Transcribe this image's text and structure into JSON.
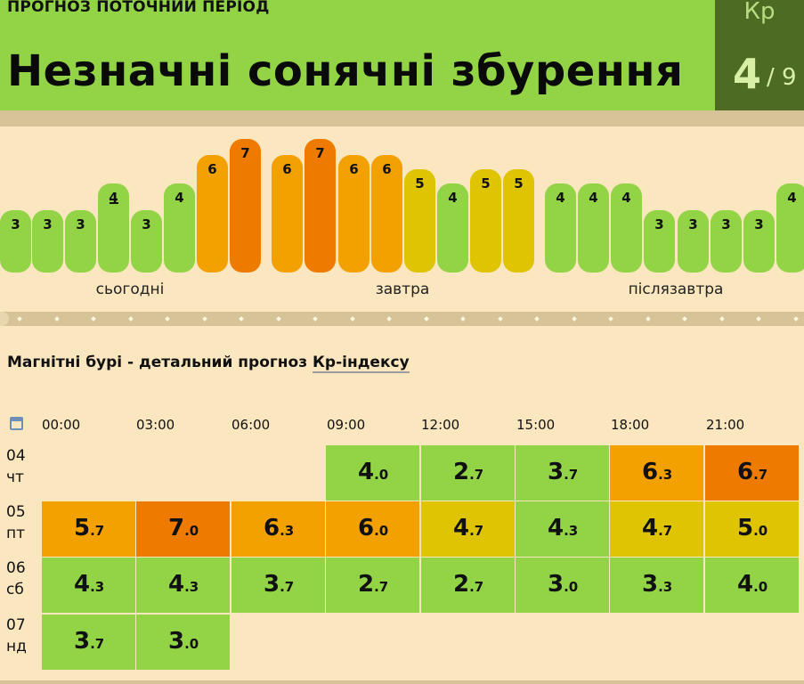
{
  "header": {
    "period_label": "ПРОГНОЗ ПОТОЧНИЙ ПЕРІОД",
    "title": "Незначні сонячні збурення",
    "kp_label": "Кр",
    "kp_value": "4",
    "kp_max": "/ 9"
  },
  "bars": [
    {
      "value": "3",
      "level": "green"
    },
    {
      "value": "3",
      "level": "green"
    },
    {
      "value": "3",
      "level": "green"
    },
    {
      "value": "4",
      "level": "green",
      "trend": true
    },
    {
      "value": "3",
      "level": "green"
    },
    {
      "value": "4",
      "level": "green"
    },
    {
      "value": "6",
      "level": "amber"
    },
    {
      "value": "7",
      "level": "orange"
    },
    {
      "value": "6",
      "level": "amber"
    },
    {
      "value": "7",
      "level": "orange"
    },
    {
      "value": "6",
      "level": "amber"
    },
    {
      "value": "6",
      "level": "amber"
    },
    {
      "value": "5",
      "level": "yellow"
    },
    {
      "value": "4",
      "level": "green"
    },
    {
      "value": "5",
      "level": "yellow"
    },
    {
      "value": "5",
      "level": "yellow"
    },
    {
      "value": "4",
      "level": "green"
    },
    {
      "value": "4",
      "level": "green"
    },
    {
      "value": "4",
      "level": "green"
    },
    {
      "value": "3",
      "level": "green"
    },
    {
      "value": "3",
      "level": "green"
    },
    {
      "value": "3",
      "level": "green"
    },
    {
      "value": "3",
      "level": "green"
    },
    {
      "value": "4",
      "level": "green"
    }
  ],
  "day_labels": [
    "сьогодні",
    "завтра",
    "післязавтра"
  ],
  "forecast": {
    "title_prefix": "Магнітні бурі - детальний прогноз ",
    "title_link": "Кр-індексу",
    "calendar_icon": "calendar-icon",
    "times": [
      "00:00",
      "03:00",
      "06:00",
      "09:00",
      "12:00",
      "15:00",
      "18:00",
      "21:00"
    ],
    "rows": [
      {
        "day": "04",
        "weekday": "чт",
        "cells": [
          null,
          null,
          null,
          {
            "int": "4",
            "dec": ".0",
            "level": "green"
          },
          {
            "int": "2",
            "dec": ".7",
            "level": "green"
          },
          {
            "int": "3",
            "dec": ".7",
            "level": "green"
          },
          {
            "int": "6",
            "dec": ".3",
            "level": "amber"
          },
          {
            "int": "6",
            "dec": ".7",
            "level": "orange"
          }
        ]
      },
      {
        "day": "05",
        "weekday": "пт",
        "cells": [
          {
            "int": "5",
            "dec": ".7",
            "level": "amber"
          },
          {
            "int": "7",
            "dec": ".0",
            "level": "orange"
          },
          {
            "int": "6",
            "dec": ".3",
            "level": "amber"
          },
          {
            "int": "6",
            "dec": ".0",
            "level": "amber"
          },
          {
            "int": "4",
            "dec": ".7",
            "level": "yellow"
          },
          {
            "int": "4",
            "dec": ".3",
            "level": "green"
          },
          {
            "int": "4",
            "dec": ".7",
            "level": "yellow"
          },
          {
            "int": "5",
            "dec": ".0",
            "level": "yellow"
          }
        ]
      },
      {
        "day": "06",
        "weekday": "сб",
        "cells": [
          {
            "int": "4",
            "dec": ".3",
            "level": "green"
          },
          {
            "int": "4",
            "dec": ".3",
            "level": "green"
          },
          {
            "int": "3",
            "dec": ".7",
            "level": "green"
          },
          {
            "int": "2",
            "dec": ".7",
            "level": "green"
          },
          {
            "int": "2",
            "dec": ".7",
            "level": "green"
          },
          {
            "int": "3",
            "dec": ".0",
            "level": "green"
          },
          {
            "int": "3",
            "dec": ".3",
            "level": "green"
          },
          {
            "int": "4",
            "dec": ".0",
            "level": "green"
          }
        ]
      },
      {
        "day": "07",
        "weekday": "нд",
        "cells": [
          {
            "int": "3",
            "dec": ".7",
            "level": "green"
          },
          {
            "int": "3",
            "dec": ".0",
            "level": "green"
          },
          null,
          null,
          null,
          null,
          null,
          null
        ]
      }
    ]
  },
  "colors": {
    "green": "#92d446",
    "yellow": "#dfc404",
    "amber": "#f3a100",
    "orange": "#ee7b00",
    "header_bg": "#92d446",
    "kp_box_bg": "#4d6b22",
    "page_bg": "#fae6bf"
  }
}
